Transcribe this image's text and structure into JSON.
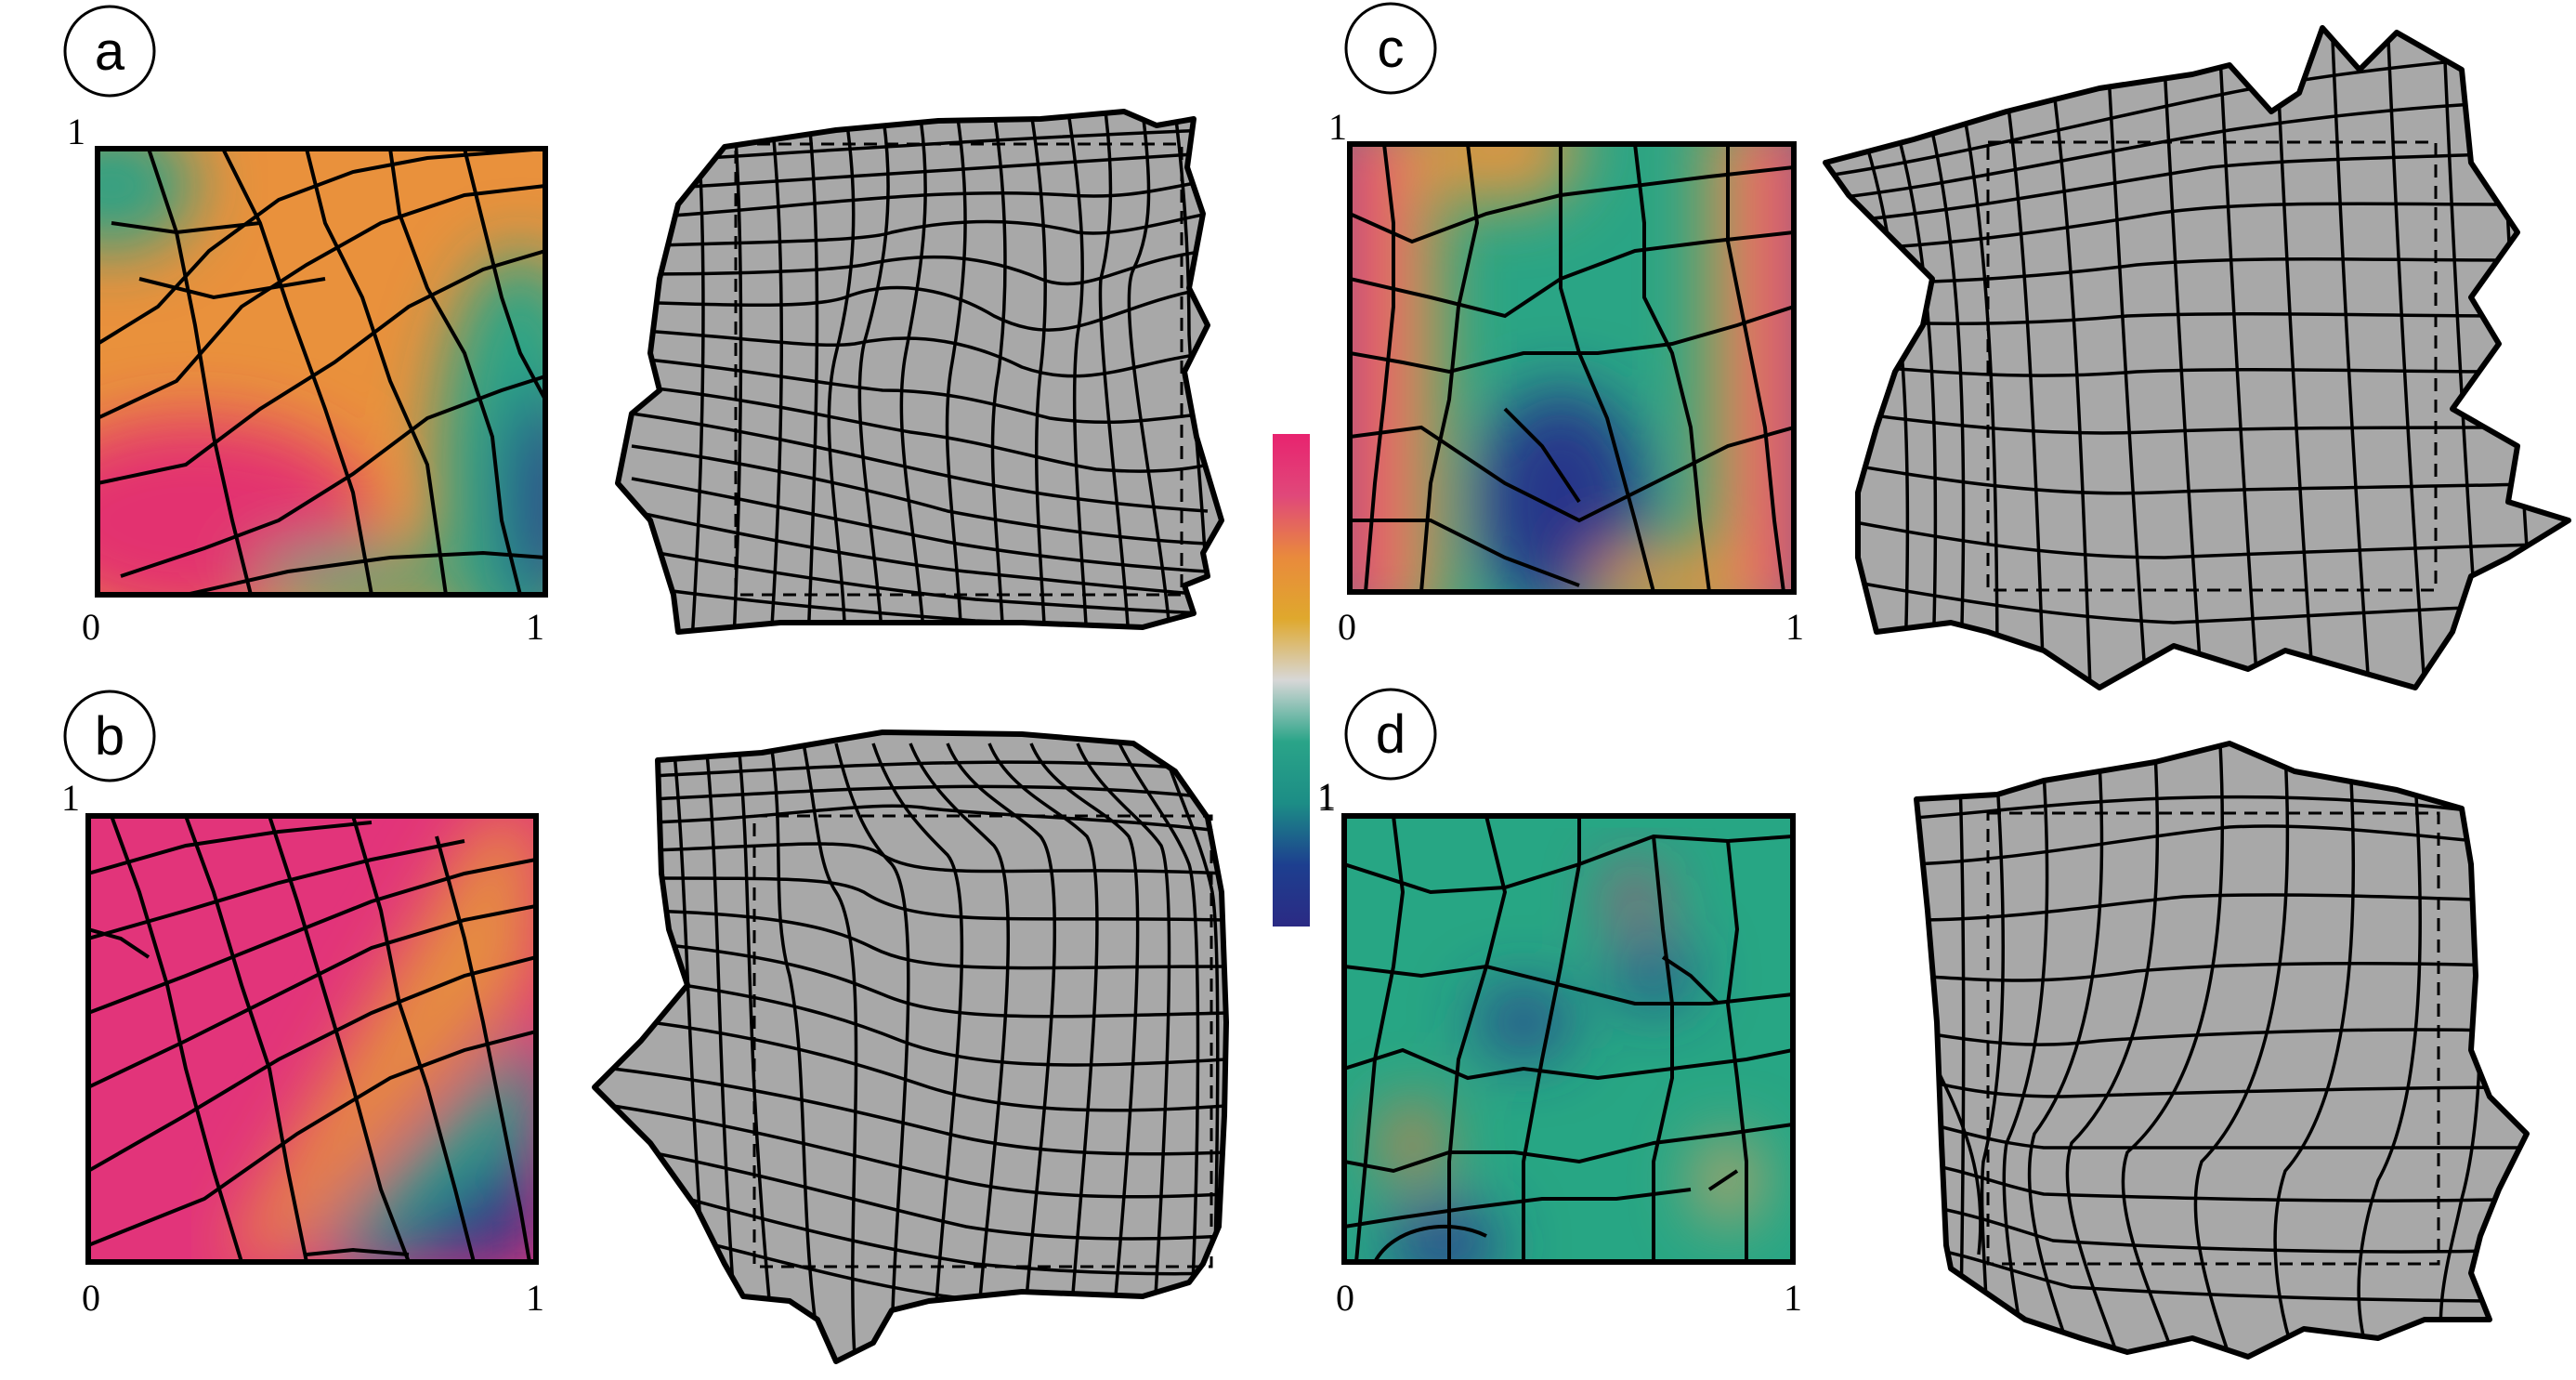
{
  "colorbar": {
    "colors": [
      "#e8236f",
      "#e0487a",
      "#e98a3c",
      "#dfa82d",
      "#d7d7d7",
      "#2aa488",
      "#1c8d86",
      "#1d3f8f",
      "#2b2a84"
    ],
    "label": "1"
  },
  "mesh_fill": "#a8a8a8",
  "panels": [
    {
      "letter": "a",
      "axis": {
        "top": "1",
        "x0": "0",
        "x1": "1"
      },
      "heatmap": [
        "#e62f6f",
        "#e9853c",
        "#2ba184",
        "#2a3b8c"
      ],
      "icon": "warped-quad-mesh-icon"
    },
    {
      "letter": "b",
      "axis": {
        "top": "1",
        "x0": "0",
        "x1": "1"
      },
      "heatmap": [
        "#e2347a",
        "#e58e40",
        "#26a386",
        "#2c3788"
      ],
      "icon": "warped-quad-mesh-icon"
    },
    {
      "letter": "c",
      "axis": {
        "top": "1",
        "x0": "0",
        "x1": "1"
      },
      "heatmap": [
        "#e43e75",
        "#e39540",
        "#25a587",
        "#25358a"
      ],
      "icon": "warped-quad-mesh-icon"
    },
    {
      "letter": "d",
      "axis": {
        "top": "1",
        "x0": "0",
        "x1": "1"
      },
      "heatmap": [
        "#27a684",
        "#25a180",
        "#e07a45",
        "#2c3e90"
      ],
      "icon": "warped-quad-mesh-icon"
    }
  ]
}
